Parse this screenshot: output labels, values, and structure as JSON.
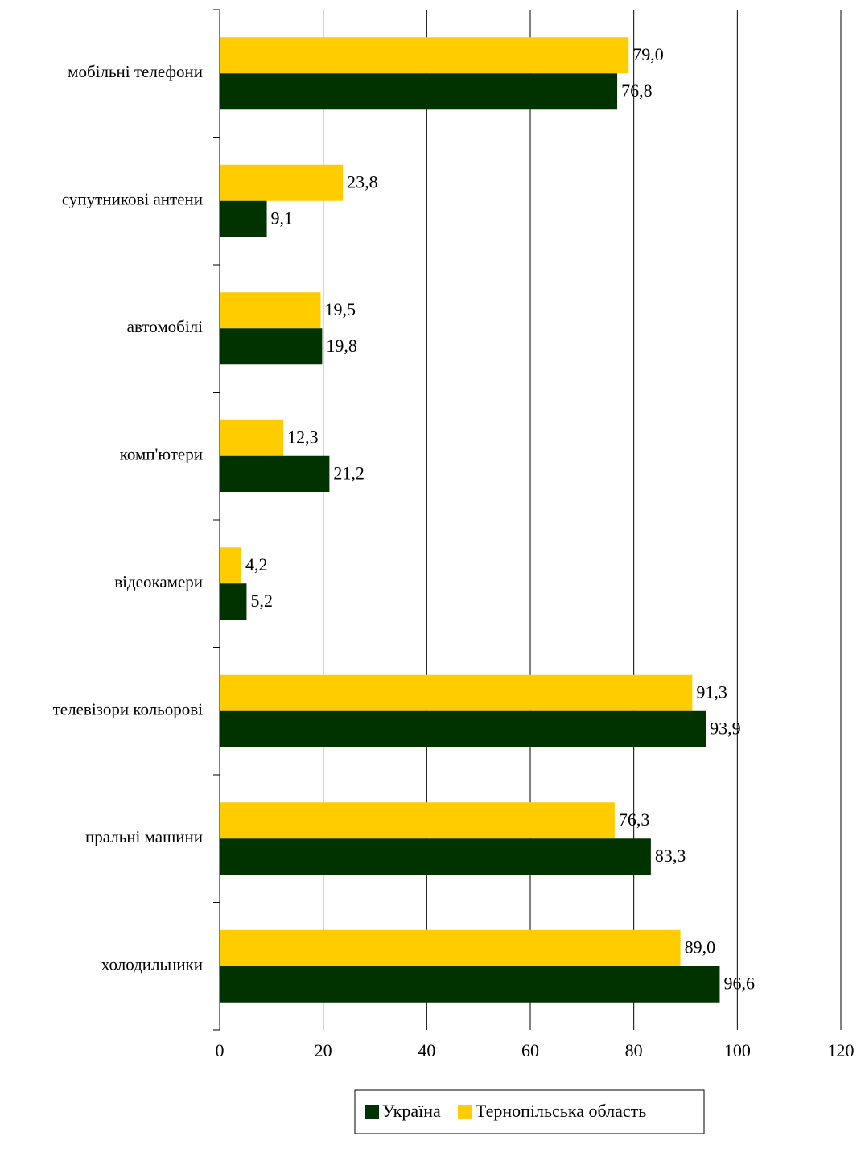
{
  "chart_data": {
    "type": "bar",
    "orientation": "horizontal",
    "categories": [
      "мобільні телефони",
      "супутникові антени",
      "автомобілі",
      "комп'ютери",
      "відеокамери",
      "телевізори кольорові",
      "пральні машини",
      "холодильники"
    ],
    "series": [
      {
        "name": "Тернопільська область",
        "color": "#FFCC00",
        "values": [
          79.0,
          23.8,
          19.5,
          12.3,
          4.2,
          91.3,
          76.3,
          89.0
        ],
        "labels": [
          "79,0",
          "23,8",
          "19,5",
          "12,3",
          "4,2",
          "91,3",
          "76,3",
          "89,0"
        ]
      },
      {
        "name": "Україна",
        "color": "#003300",
        "values": [
          76.8,
          9.1,
          19.8,
          21.2,
          5.2,
          93.9,
          83.3,
          96.6
        ],
        "labels": [
          "76,8",
          "9,1",
          "19,8",
          "21,2",
          "5,2",
          "93,9",
          "83,3",
          "96,6"
        ]
      }
    ],
    "xlim": [
      0,
      120
    ],
    "xticks": [
      0,
      20,
      40,
      60,
      80,
      100,
      120
    ],
    "xtick_labels": [
      "0",
      "20",
      "40",
      "60",
      "80",
      "100",
      "120"
    ],
    "grid": "vertical",
    "legend": {
      "position": "bottom",
      "items": [
        {
          "name": "Україна",
          "color": "#003300"
        },
        {
          "name": "Тернопільська область",
          "color": "#FFCC00"
        }
      ]
    },
    "title": "",
    "xlabel": "",
    "ylabel": ""
  }
}
